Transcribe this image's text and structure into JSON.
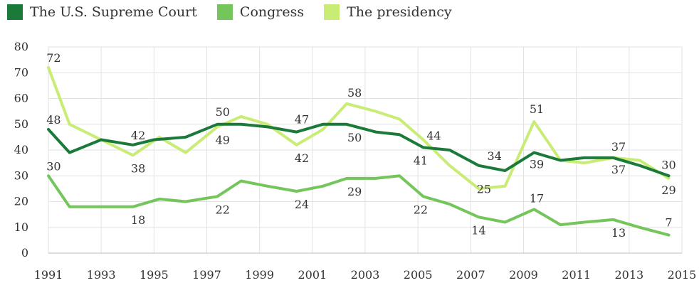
{
  "chart_data": {
    "type": "line",
    "title": "",
    "xlabel": "",
    "ylabel": "",
    "xlim": [
      1991,
      2015
    ],
    "ylim": [
      0,
      80
    ],
    "x_ticks": [
      "1991",
      "1993",
      "1995",
      "1997",
      "1999",
      "2001",
      "2003",
      "2005",
      "2007",
      "2009",
      "2011",
      "2013",
      "2015"
    ],
    "y_ticks": [
      "0",
      "10",
      "20",
      "30",
      "40",
      "50",
      "60",
      "70",
      "80"
    ],
    "grid": true,
    "legend_position": "top-left",
    "series": [
      {
        "name": "The U.S. Supreme Court",
        "color": "#1b7a3a",
        "x": [
          1991,
          1991.8,
          1993,
          1994.2,
          1995,
          1996.2,
          1997.4,
          1998.3,
          1999.3,
          2000.4,
          2001.4,
          2002.3,
          2003.4,
          2004.3,
          2005.2,
          2006.2,
          2007.3,
          2008.3,
          2009.4,
          2010.4,
          2011.3,
          2012.4,
          2013.4,
          2014.5
        ],
        "values": [
          48,
          39,
          44,
          42,
          44,
          45,
          50,
          50,
          49,
          47,
          50,
          50,
          47,
          46,
          41,
          40,
          34,
          32,
          39,
          36,
          37,
          37,
          34,
          30
        ]
      },
      {
        "name": "Congress",
        "color": "#74c65c",
        "x": [
          1991,
          1991.8,
          1993,
          1994.2,
          1995.2,
          1996.2,
          1997.4,
          1998.3,
          1999.3,
          2000.4,
          2001.4,
          2002.3,
          2003.4,
          2004.3,
          2005.2,
          2006.2,
          2007.3,
          2008.3,
          2009.4,
          2010.4,
          2011.3,
          2012.4,
          2013.4,
          2014.5
        ],
        "values": [
          30,
          18,
          18,
          18,
          21,
          20,
          22,
          28,
          26,
          24,
          26,
          29,
          29,
          30,
          22,
          19,
          14,
          12,
          17,
          11,
          12,
          13,
          10,
          7
        ]
      },
      {
        "name": "The presidency",
        "color": "#c9ec74",
        "x": [
          1991,
          1991.8,
          1993,
          1994.2,
          1995.2,
          1996.2,
          1997.4,
          1998.3,
          1999.3,
          2000.4,
          2001.4,
          2002.3,
          2003.4,
          2004.3,
          2005.2,
          2006.2,
          2007.3,
          2008.3,
          2009.4,
          2010.4,
          2011.3,
          2012.4,
          2013.4,
          2014.5
        ],
        "values": [
          72,
          50,
          44,
          38,
          45,
          39,
          49,
          53,
          50,
          42,
          48,
          58,
          55,
          52,
          44,
          34,
          25,
          26,
          51,
          36,
          35,
          37,
          36,
          29
        ]
      }
    ],
    "annotations": [
      {
        "text": "72",
        "x": 1991.2,
        "y": 72,
        "dy": -8
      },
      {
        "text": "48",
        "x": 1991.2,
        "y": 48,
        "dy": -8
      },
      {
        "text": "30",
        "x": 1991.2,
        "y": 30,
        "dy": -8
      },
      {
        "text": "42",
        "x": 1994.4,
        "y": 42,
        "dy": -8
      },
      {
        "text": "38",
        "x": 1994.4,
        "y": 38,
        "dy": 24
      },
      {
        "text": "18",
        "x": 1994.4,
        "y": 18,
        "dy": 24
      },
      {
        "text": "50",
        "x": 1997.6,
        "y": 50,
        "dy": -12
      },
      {
        "text": "49",
        "x": 1997.6,
        "y": 49,
        "dy": 24
      },
      {
        "text": "22",
        "x": 1997.6,
        "y": 22,
        "dy": 24
      },
      {
        "text": "47",
        "x": 2000.6,
        "y": 47,
        "dy": -12
      },
      {
        "text": "42",
        "x": 2000.6,
        "y": 42,
        "dy": 24
      },
      {
        "text": "24",
        "x": 2000.6,
        "y": 24,
        "dy": 24
      },
      {
        "text": "58",
        "x": 2002.6,
        "y": 58,
        "dy": -10
      },
      {
        "text": "50",
        "x": 2002.6,
        "y": 50,
        "dy": 24
      },
      {
        "text": "29",
        "x": 2002.6,
        "y": 29,
        "dy": 24
      },
      {
        "text": "44",
        "x": 2005.6,
        "y": 44,
        "dy": 0
      },
      {
        "text": "41",
        "x": 2005.1,
        "y": 41,
        "dy": 24
      },
      {
        "text": "22",
        "x": 2005.1,
        "y": 22,
        "dy": 24
      },
      {
        "text": "34",
        "x": 2007.9,
        "y": 34,
        "dy": -8
      },
      {
        "text": "25",
        "x": 2007.5,
        "y": 25,
        "dy": 6
      },
      {
        "text": "14",
        "x": 2007.3,
        "y": 14,
        "dy": 24
      },
      {
        "text": "51",
        "x": 2009.5,
        "y": 51,
        "dy": -12
      },
      {
        "text": "39",
        "x": 2009.5,
        "y": 39,
        "dy": 22
      },
      {
        "text": "17",
        "x": 2009.5,
        "y": 17,
        "dy": -10
      },
      {
        "text": "37",
        "x": 2012.6,
        "y": 37,
        "dy": -10
      },
      {
        "text": "37",
        "x": 2012.6,
        "y": 37,
        "dy": 22
      },
      {
        "text": "13",
        "x": 2012.6,
        "y": 13,
        "dy": 24
      },
      {
        "text": "30",
        "x": 2014.5,
        "y": 30,
        "dy": -10
      },
      {
        "text": "29",
        "x": 2014.5,
        "y": 29,
        "dy": 22
      },
      {
        "text": "7",
        "x": 2014.5,
        "y": 7,
        "dy": -12
      }
    ]
  }
}
